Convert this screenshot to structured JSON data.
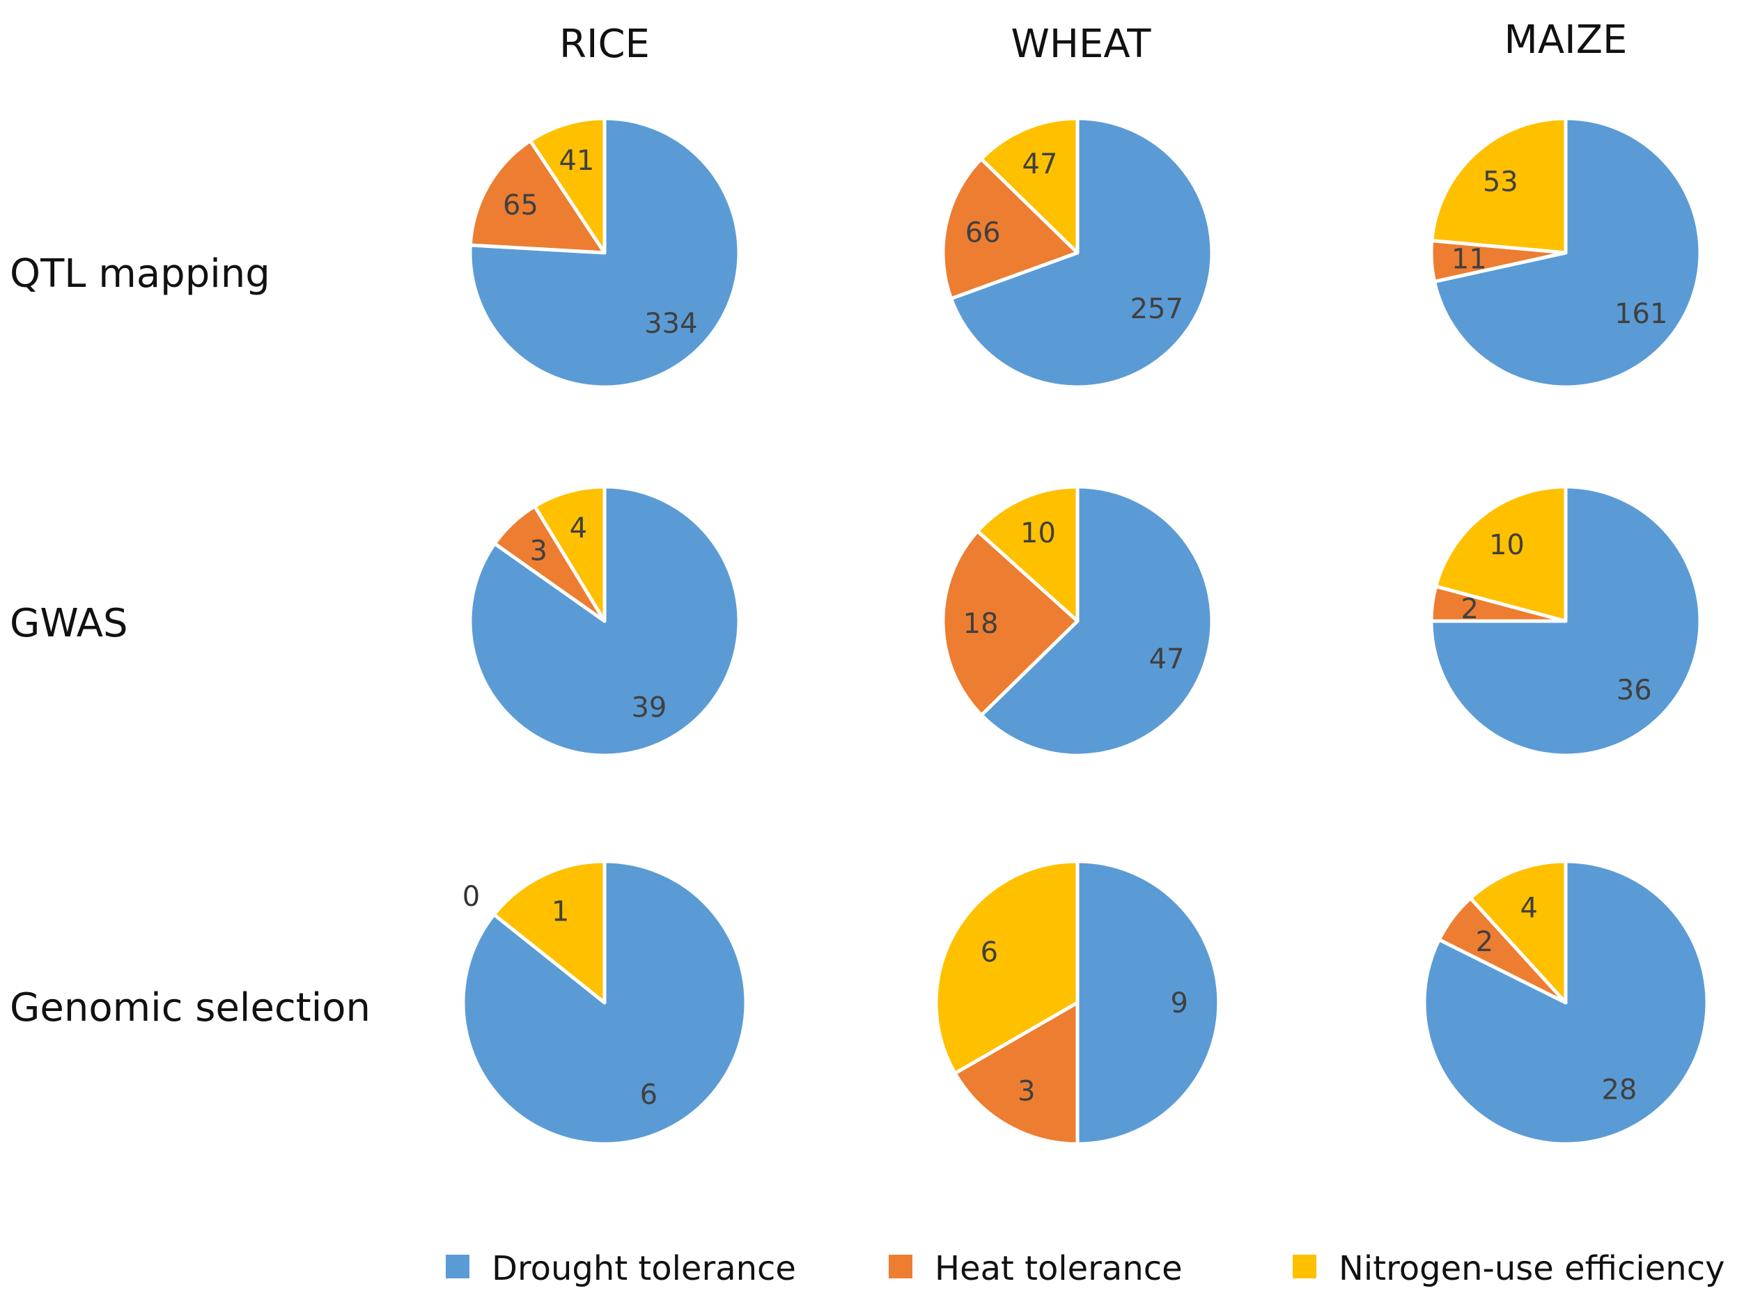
{
  "chart_data": {
    "type": "pie",
    "title": "",
    "columns": [
      "RICE",
      "WHEAT",
      "MAIZE"
    ],
    "rows": [
      "QTL mapping",
      "GWAS",
      "Genomic selection"
    ],
    "legend": [
      {
        "key": "drought",
        "label": "Drought tolerance",
        "color": "#5B9BD5"
      },
      {
        "key": "heat",
        "label": "Heat tolerance",
        "color": "#ED7D31"
      },
      {
        "key": "nitrogen",
        "label": "Nitrogen-use efficiency",
        "color": "#FFC000"
      }
    ],
    "legend_position": "bottom",
    "charts": [
      {
        "row": "QTL mapping",
        "column": "RICE",
        "values": {
          "drought": 334,
          "heat": 65,
          "nitrogen": 41
        }
      },
      {
        "row": "QTL mapping",
        "column": "WHEAT",
        "values": {
          "drought": 257,
          "heat": 66,
          "nitrogen": 47
        }
      },
      {
        "row": "QTL mapping",
        "column": "MAIZE",
        "values": {
          "drought": 161,
          "heat": 11,
          "nitrogen": 53
        }
      },
      {
        "row": "GWAS",
        "column": "RICE",
        "values": {
          "drought": 39,
          "heat": 3,
          "nitrogen": 4
        }
      },
      {
        "row": "GWAS",
        "column": "WHEAT",
        "values": {
          "drought": 47,
          "heat": 18,
          "nitrogen": 10
        }
      },
      {
        "row": "GWAS",
        "column": "MAIZE",
        "values": {
          "drought": 36,
          "heat": 2,
          "nitrogen": 10
        }
      },
      {
        "row": "Genomic selection",
        "column": "RICE",
        "values": {
          "drought": 6,
          "heat": 0,
          "nitrogen": 1
        }
      },
      {
        "row": "Genomic selection",
        "column": "WHEAT",
        "values": {
          "drought": 9,
          "heat": 3,
          "nitrogen": 6
        }
      },
      {
        "row": "Genomic selection",
        "column": "MAIZE",
        "values": {
          "drought": 28,
          "heat": 2,
          "nitrogen": 4
        }
      }
    ]
  }
}
